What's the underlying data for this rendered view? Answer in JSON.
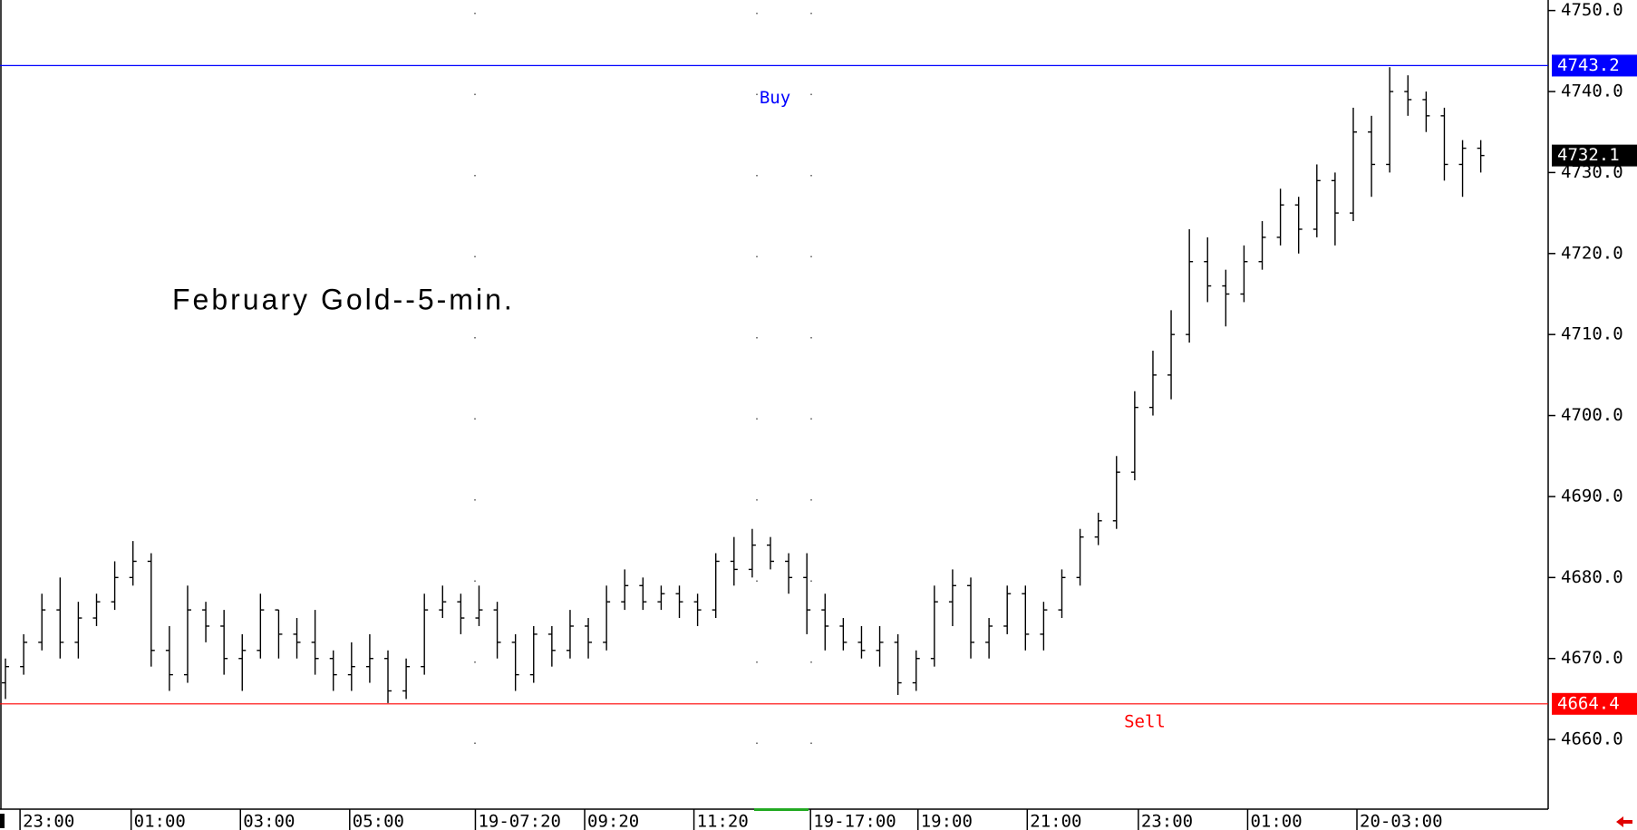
{
  "chart_data": {
    "type": "ohlc",
    "title": "February Gold--5-min.",
    "color": "#000000",
    "open": [
      4667,
      4669,
      4672,
      4676,
      4672,
      4675,
      4677,
      4680,
      4682,
      4671,
      4668,
      4676,
      4674,
      4670,
      4671,
      4676,
      4673,
      4672,
      4670,
      4668,
      4669,
      4670,
      4666,
      4669,
      4676,
      4677,
      4675,
      4676,
      4672,
      4668,
      4673,
      4671,
      4674,
      4672,
      4677,
      4679,
      4677,
      4678,
      4677,
      4676,
      4682,
      4681,
      4684,
      4682,
      4680,
      4676,
      4674,
      4672,
      4671,
      4672,
      4667,
      4670,
      4677,
      4679,
      4672,
      4674,
      4678,
      4673,
      4676,
      4680,
      4685,
      4687,
      4693,
      4701,
      4705,
      4710,
      4719,
      4716,
      4715,
      4719,
      4722,
      4726,
      4723,
      4729,
      4725,
      4735,
      4731,
      4740,
      4739,
      4737,
      4731,
      4733
    ],
    "high": [
      4670,
      4673,
      4678,
      4680,
      4677,
      4678,
      4682,
      4684.5,
      4683,
      4674,
      4679,
      4677,
      4676,
      4673,
      4678,
      4676,
      4675,
      4676,
      4671,
      4672,
      4673,
      4671,
      4670,
      4678,
      4679,
      4678,
      4679,
      4677,
      4673,
      4674,
      4674,
      4676,
      4675,
      4679,
      4681,
      4680,
      4679,
      4679,
      4678,
      4683,
      4685,
      4686,
      4685,
      4683,
      4683,
      4678,
      4675,
      4674,
      4674,
      4673,
      4671,
      4679,
      4681,
      4680,
      4675,
      4679,
      4679,
      4677,
      4681,
      4686,
      4688,
      4695,
      4703,
      4708,
      4713,
      4723,
      4722,
      4718,
      4721,
      4724,
      4728,
      4727,
      4731,
      4730,
      4738,
      4737,
      4743,
      4742,
      4740,
      4738,
      4734,
      4734
    ],
    "low": [
      4665,
      4668,
      4671,
      4670,
      4670,
      4674,
      4676,
      4679,
      4669,
      4666,
      4667,
      4672,
      4668,
      4666,
      4670,
      4670,
      4670,
      4668,
      4666,
      4666,
      4667,
      4664.5,
      4665,
      4668,
      4675,
      4673,
      4674,
      4670,
      4666,
      4667,
      4669,
      4670,
      4670,
      4671,
      4676,
      4676,
      4676,
      4675,
      4674,
      4675,
      4679,
      4680,
      4681,
      4678,
      4673,
      4671,
      4671,
      4670,
      4669,
      4665.5,
      4666,
      4669,
      4674,
      4670,
      4670,
      4673,
      4671,
      4671,
      4675,
      4679,
      4684,
      4686,
      4692,
      4700,
      4702,
      4709,
      4714,
      4711,
      4714,
      4718,
      4721,
      4720,
      4722,
      4721,
      4724,
      4727,
      4730,
      4737,
      4735,
      4729,
      4727,
      4730
    ],
    "close": [
      4669,
      4672,
      4676,
      4672,
      4675,
      4677,
      4680,
      4682,
      4671,
      4668,
      4676,
      4674,
      4670,
      4671,
      4676,
      4673,
      4672,
      4670,
      4668,
      4669,
      4670,
      4666,
      4669,
      4676,
      4677,
      4675,
      4676,
      4672,
      4668,
      4673,
      4671,
      4674,
      4672,
      4677,
      4679,
      4677,
      4678,
      4677,
      4676,
      4682,
      4681,
      4684,
      4682,
      4680,
      4676,
      4674,
      4672,
      4671,
      4672,
      4667,
      4670,
      4677,
      4679,
      4672,
      4674,
      4678,
      4673,
      4676,
      4680,
      4685,
      4687,
      4693,
      4701,
      4705,
      4710,
      4719,
      4716,
      4715,
      4719,
      4722,
      4726,
      4723,
      4729,
      4725,
      4735,
      4731,
      4740,
      4739,
      4737,
      4731,
      4733,
      4732.1
    ],
    "xlim": [
      0,
      85
    ],
    "xticks": [
      {
        "value": 1.1,
        "label": "23:00"
      },
      {
        "value": 7.2,
        "label": "01:00"
      },
      {
        "value": 13.2,
        "label": "03:00"
      },
      {
        "value": 19.2,
        "label": "05:00"
      },
      {
        "value": 26.1,
        "label": "19-07:20"
      },
      {
        "value": 32.1,
        "label": "09:20"
      },
      {
        "value": 38.1,
        "label": "11:20"
      },
      {
        "value": 44.5,
        "label": "19-17:00"
      },
      {
        "value": 50.4,
        "label": "19:00"
      },
      {
        "value": 56.4,
        "label": "21:00"
      },
      {
        "value": 62.5,
        "label": "23:00"
      },
      {
        "value": 68.5,
        "label": "01:00"
      },
      {
        "value": 74.5,
        "label": "20-03:00"
      }
    ],
    "ylim": [
      4651.4,
      4751.3
    ],
    "yticks": [
      {
        "value": 4660,
        "label": "4660.0"
      },
      {
        "value": 4670,
        "label": "4670.0"
      },
      {
        "value": 4680,
        "label": "4680.0"
      },
      {
        "value": 4690,
        "label": "4690.0"
      },
      {
        "value": 4700,
        "label": "4700.0"
      },
      {
        "value": 4710,
        "label": "4710.0"
      },
      {
        "value": 4720,
        "label": "4720.0"
      },
      {
        "value": 4730,
        "label": "4730.0"
      },
      {
        "value": 4740,
        "label": "4740.0"
      },
      {
        "value": 4750,
        "label": "4750.0"
      }
    ],
    "levels": [
      {
        "label": "Buy",
        "value": 4743.2,
        "color": "#0000ff"
      },
      {
        "label": "Sell",
        "value": 4664.4,
        "color": "#ff0000"
      }
    ],
    "last": 4732.1
  }
}
